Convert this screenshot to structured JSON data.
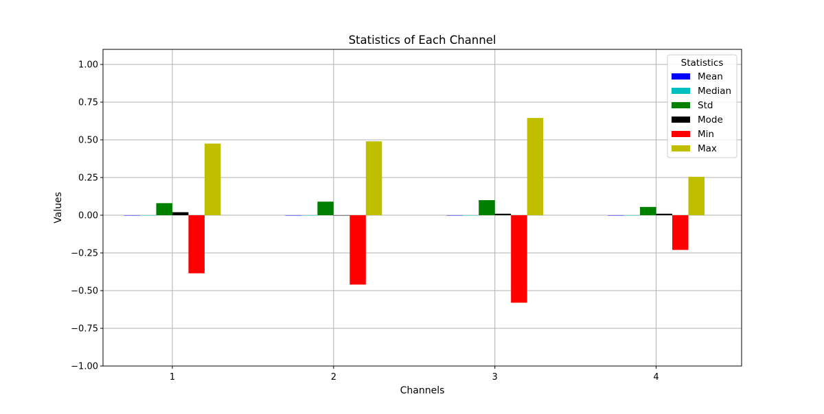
{
  "chart_data": {
    "type": "bar",
    "title": "Statistics of Each Channel",
    "xlabel": "Channels",
    "ylabel": "Values",
    "categories": [
      "1",
      "2",
      "3",
      "4"
    ],
    "ylim": [
      -1.0,
      1.1
    ],
    "yticks": [
      -1.0,
      -0.75,
      -0.5,
      -0.25,
      0.0,
      0.25,
      0.5,
      0.75,
      1.0
    ],
    "ytick_labels": [
      "−1.00",
      "−0.75",
      "−0.50",
      "−0.25",
      "0.00",
      "0.25",
      "0.50",
      "0.75",
      "1.00"
    ],
    "grid": true,
    "legend": {
      "title": "Statistics",
      "placement": "top-right"
    },
    "series": [
      {
        "name": "Mean",
        "color": "#0000ff",
        "values": [
          0.0,
          0.0,
          0.0,
          0.0
        ]
      },
      {
        "name": "Median",
        "color": "#00bfbf",
        "values": [
          0.0,
          0.0,
          0.0,
          0.0
        ]
      },
      {
        "name": "Std",
        "color": "#008000",
        "values": [
          0.08,
          0.09,
          0.1,
          0.055
        ]
      },
      {
        "name": "Mode",
        "color": "#000000",
        "values": [
          0.02,
          0.0,
          0.01,
          0.01
        ]
      },
      {
        "name": "Min",
        "color": "#ff0000",
        "values": [
          -0.385,
          -0.46,
          -0.58,
          -0.23
        ]
      },
      {
        "name": "Max",
        "color": "#bfbf00",
        "values": [
          0.475,
          0.49,
          0.645,
          0.255
        ]
      }
    ]
  }
}
